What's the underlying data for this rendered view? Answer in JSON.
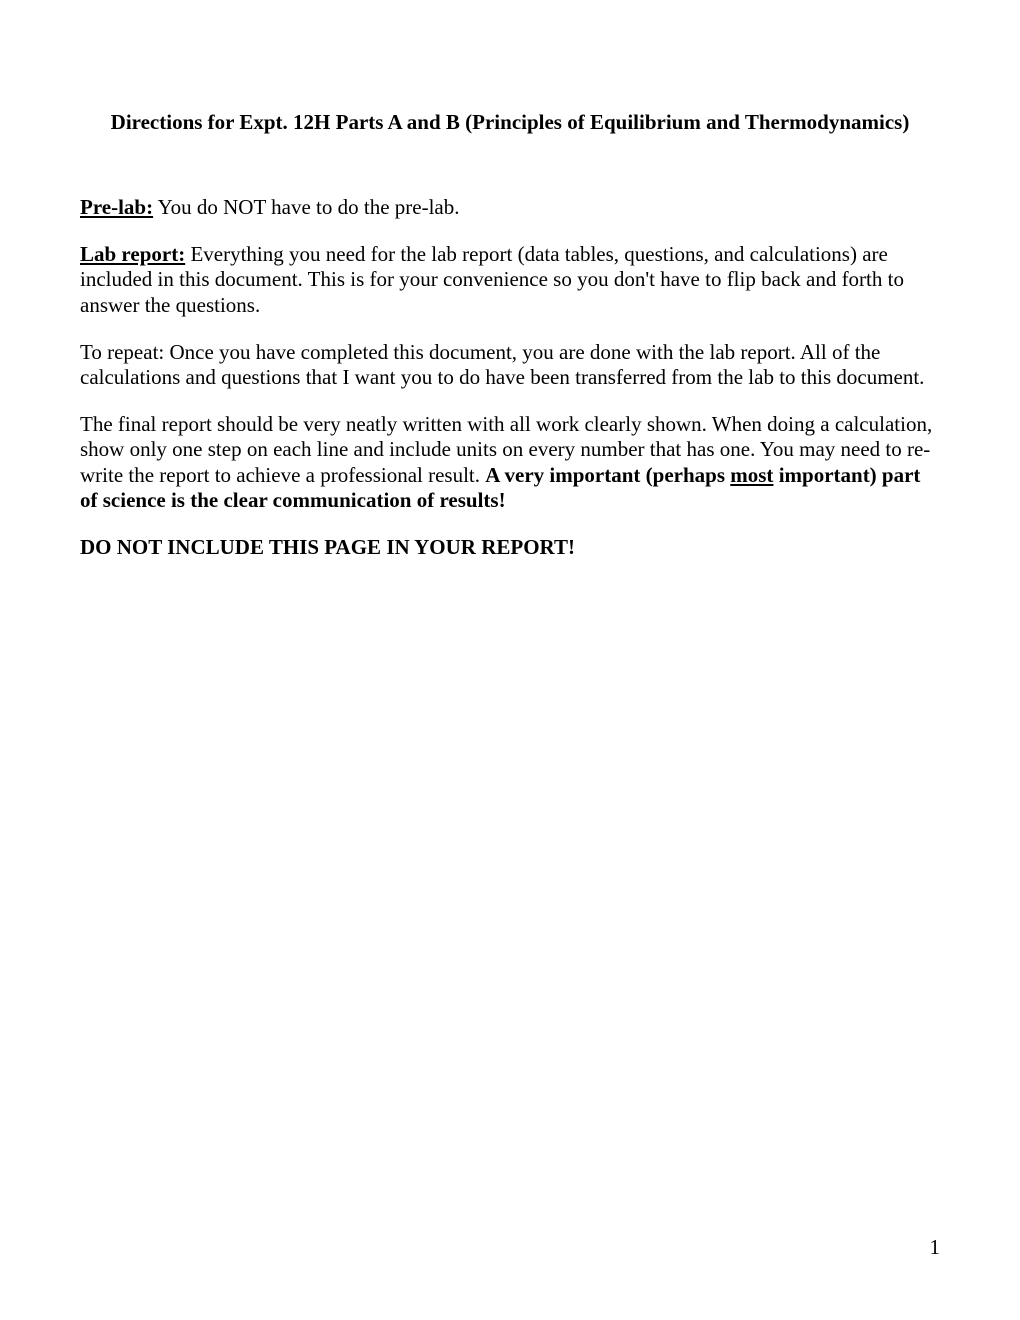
{
  "title": "Directions for Expt. 12H Parts A and B (Principles of Equilibrium and Thermodynamics)",
  "prelab": {
    "label": "Pre-lab:",
    "text": "  You do NOT have to do the pre-lab."
  },
  "labreport": {
    "label": "Lab report:",
    "text": "  Everything you need for the lab report (data tables, questions, and calculations) are included in this document.  This is for your convenience so you don't have to flip back and forth to answer the questions."
  },
  "repeat": "To repeat:  Once you have completed this document, you are done with the lab report.  All of the calculations and questions that I want you to do have been transferred from the lab to this document.",
  "final": {
    "part1": "The final report should be very neatly written with all work clearly shown.  When doing a calculation, show only one step on each line and include units on every number that has one.  You may need to re-write the report to achieve a professional result.  ",
    "bold1": "A very important (perhaps ",
    "most": "most",
    "bold2": " important) part of science is the clear communication of results!"
  },
  "donot": "DO NOT INCLUDE THIS PAGE IN YOUR REPORT!",
  "page_number": "1"
}
